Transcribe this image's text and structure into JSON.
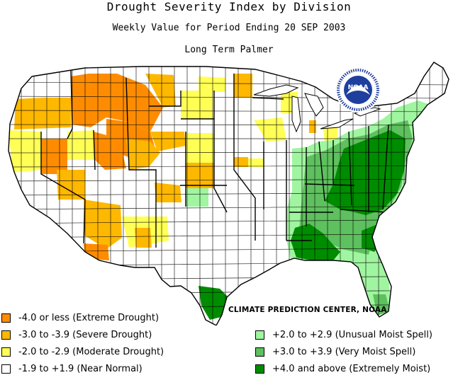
{
  "header": {
    "title": "Drought Severity Index by Division",
    "subtitle": "Weekly Value for Period Ending 20 SEP 2003",
    "index_name": "Long Term Palmer"
  },
  "logo": {
    "text": "NOAA",
    "ring_color": "#1f3f9f"
  },
  "credit": "CLIMATE PREDICTION CENTER, NOAA",
  "colors": {
    "extreme_drought": "#ff8c00",
    "severe_drought": "#ffb800",
    "moderate_drought": "#ffff55",
    "near_normal": "#ffffff",
    "unusual_moist": "#a0f5a0",
    "very_moist": "#5ec05e",
    "extremely_moist": "#008c00",
    "lakes": "#ffffff",
    "border": "#000000"
  },
  "legend": [
    {
      "label": "-4.0 or less (Extreme Drought)",
      "color": "#ff8c00"
    },
    {
      "label": "-3.0 to -3.9 (Severe Drought)",
      "color": "#ffb800"
    },
    {
      "label": "-2.0 to -2.9 (Moderate Drought)",
      "color": "#ffff55"
    },
    {
      "label": "-1.9 to +1.9 (Near Normal)",
      "color": "#ffffff"
    },
    {
      "label": "+2.0 to +2.9 (Unusual Moist Spell)",
      "color": "#a0f5a0"
    },
    {
      "label": "+3.0 to +3.9 (Very Moist Spell)",
      "color": "#5ec05e"
    },
    {
      "label": "+4.0 and above (Extremely Moist)",
      "color": "#008c00"
    }
  ]
}
